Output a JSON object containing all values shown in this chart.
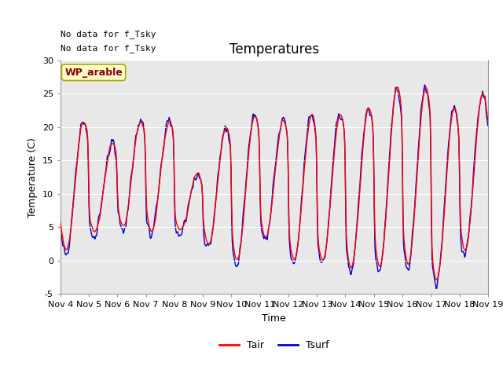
{
  "title": "Temperatures",
  "xlabel": "Time",
  "ylabel": "Temperature (C)",
  "ylim": [
    -5,
    30
  ],
  "yticks": [
    -5,
    0,
    5,
    10,
    15,
    20,
    25,
    30
  ],
  "xtick_labels": [
    "Nov 4",
    "Nov 5",
    "Nov 6",
    "Nov 7",
    "Nov 8",
    "Nov 9",
    "Nov 10",
    "Nov 11",
    "Nov 12",
    "Nov 13",
    "Nov 14",
    "Nov 15",
    "Nov 16",
    "Nov 17",
    "Nov 18",
    "Nov 19"
  ],
  "annotation_text1": "No data for f_Tsky",
  "annotation_text2": "No data for f_Tsky",
  "box_label": "WP_arable",
  "tair_color": "#ff0000",
  "tsurf_color": "#0000cc",
  "plot_bg_color": "#e8e8e8",
  "legend_tair": "Tair",
  "legend_tsurf": "Tsurf",
  "title_fontsize": 12,
  "axis_fontsize": 9,
  "tick_fontsize": 8,
  "legend_fontsize": 9,
  "annotation_fontsize": 8
}
